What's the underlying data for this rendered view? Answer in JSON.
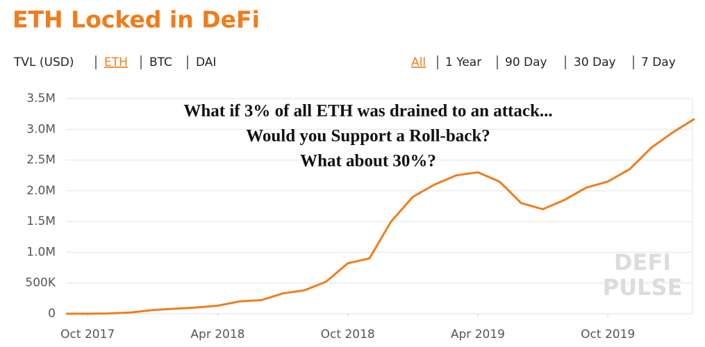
{
  "header": {
    "title": "ETH Locked in DeFi",
    "units": [
      "TVL (USD)",
      "ETH",
      "BTC",
      "DAI"
    ],
    "ranges": [
      "All",
      "1 Year",
      "90 Day",
      "30 Day",
      "7 Day"
    ]
  },
  "chart_data": {
    "type": "line",
    "annotation": [
      "What if 3% of all ETH was drained to an attack...",
      "Would you Support a Roll-back?",
      "What about 30%?"
    ],
    "watermark": [
      "DEFI",
      "PULSE"
    ],
    "x": [
      "2017-09",
      "2017-10",
      "2017-11",
      "2017-12",
      "2018-01",
      "2018-02",
      "2018-03",
      "2018-04",
      "2018-05",
      "2018-06",
      "2018-07",
      "2018-08",
      "2018-09",
      "2018-10",
      "2018-11",
      "2018-12",
      "2019-01",
      "2019-02",
      "2019-03",
      "2019-04",
      "2019-05",
      "2019-06",
      "2019-07",
      "2019-08",
      "2019-09",
      "2019-10",
      "2019-11",
      "2019-12",
      "2020-01",
      "2020-02"
    ],
    "values": [
      0,
      0,
      5000,
      20000,
      60000,
      80000,
      100000,
      130000,
      200000,
      220000,
      330000,
      380000,
      520000,
      820000,
      900000,
      1500000,
      1900000,
      2100000,
      2250000,
      2300000,
      2150000,
      1800000,
      1700000,
      1850000,
      2050000,
      2150000,
      2350000,
      2700000,
      2950000,
      3170000
    ],
    "color": "#f07c1b",
    "xlim": [
      "2017-09",
      "2020-02"
    ],
    "xticks": [
      {
        "value": "2017-10",
        "label": "Oct 2017"
      },
      {
        "value": "2018-04",
        "label": "Apr 2018"
      },
      {
        "value": "2018-10",
        "label": "Oct 2018"
      },
      {
        "value": "2019-04",
        "label": "Apr 2019"
      },
      {
        "value": "2019-10",
        "label": "Oct 2019"
      }
    ],
    "ylim": [
      0,
      3500000
    ],
    "yticks": [
      0,
      {
        "value": 500000,
        "label": "500K"
      },
      {
        "value": 1000000,
        "label": "1.0M"
      },
      {
        "value": 1500000,
        "label": "1.5M"
      },
      {
        "value": 2000000,
        "label": "2.0M"
      },
      {
        "value": 2500000,
        "label": "2.5M"
      },
      {
        "value": 3000000,
        "label": "3.0M"
      },
      {
        "value": 3500000,
        "label": "3.5M"
      }
    ],
    "grid": true
  }
}
